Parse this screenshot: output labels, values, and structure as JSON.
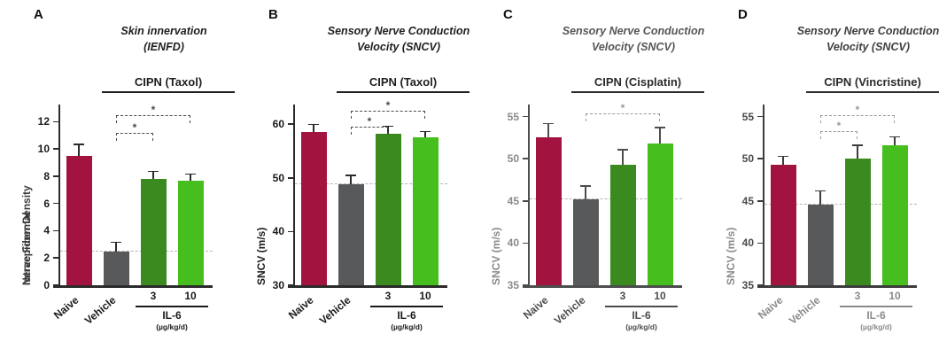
{
  "figure": {
    "background": "#ffffff",
    "colors": {
      "naive": "#a3133f",
      "vehicle": "#58595b",
      "il6_3": "#3b8a1f",
      "il6_10": "#46bf1e",
      "dashed_line": "#b5b5b5"
    }
  },
  "chart_data": [
    {
      "type": "bar",
      "letter": "A",
      "title": [
        "Skin innervation",
        "(IENFD)"
      ],
      "group_header": "CIPN (Taxol)",
      "ylabel": [
        "Intraepidermal",
        "Nerve Fiber Density"
      ],
      "categories": [
        "Naive",
        "Vehicle",
        "3",
        "10"
      ],
      "values": [
        9.5,
        2.5,
        7.8,
        7.7
      ],
      "errors": [
        0.8,
        0.6,
        0.5,
        0.4
      ],
      "bar_colors": [
        "naive",
        "vehicle",
        "il6_3",
        "il6_10"
      ],
      "ylim": [
        0,
        13
      ],
      "yticks": [
        0,
        2,
        4,
        6,
        8,
        10,
        12
      ],
      "reference_line": 2.5,
      "brackets": [
        {
          "from": 1,
          "to": 3,
          "label": "*",
          "top": 8
        },
        {
          "from": 1,
          "to": 2,
          "label": "*",
          "top": 28
        }
      ],
      "xgroup": {
        "label": "IL-6",
        "sublabel": "(µg/kg/d)"
      },
      "axis_color": "#2b2b2b",
      "axis_text_color": "#1a1a1a",
      "xtext_color": "#1a1a1a",
      "bracket_color": "#4a4a4a",
      "ylabel_color": "#3a3a3a",
      "title_color": "#1f1f1f",
      "header_color": "#1f1f1f"
    },
    {
      "type": "bar",
      "letter": "B",
      "title": [
        "Sensory Nerve Conduction",
        "Velocity (SNCV)"
      ],
      "group_header": "CIPN (Taxol)",
      "ylabel": [
        "SNCV (m/s)"
      ],
      "categories": [
        "Naive",
        "Vehicle",
        "3",
        "10"
      ],
      "values": [
        58.5,
        48.8,
        58.3,
        57.5
      ],
      "errors": [
        1.3,
        1.5,
        1.2,
        1.0
      ],
      "bar_colors": [
        "naive",
        "vehicle",
        "il6_3",
        "il6_10"
      ],
      "ylim": [
        30,
        63
      ],
      "yticks": [
        30,
        40,
        50,
        60
      ],
      "reference_line": 48.8,
      "brackets": [
        {
          "from": 1,
          "to": 3,
          "label": "*",
          "top": 3
        },
        {
          "from": 1,
          "to": 2,
          "label": "*",
          "top": 21
        }
      ],
      "xgroup": {
        "label": "IL-6",
        "sublabel": "(µg/kg/d)"
      },
      "axis_color": "#2b2b2b",
      "axis_text_color": "#1a1a1a",
      "xtext_color": "#1a1a1a",
      "bracket_color": "#4a4a4a",
      "ylabel_color": "#1a1a1a",
      "title_color": "#1f1f1f",
      "header_color": "#1f1f1f"
    },
    {
      "type": "bar",
      "letter": "C",
      "title": [
        "Sensory Nerve Conduction",
        "Velocity (SNCV)"
      ],
      "group_header": "CIPN (Cisplatin)",
      "ylabel": [
        "SNCV (m/s)"
      ],
      "categories": [
        "Naive",
        "Vehicle",
        "3",
        "10"
      ],
      "values": [
        52.5,
        45.2,
        49.3,
        51.8
      ],
      "errors": [
        1.6,
        1.5,
        1.7,
        1.8
      ],
      "bar_colors": [
        "naive",
        "vehicle",
        "il6_3",
        "il6_10"
      ],
      "ylim": [
        35,
        56
      ],
      "yticks": [
        35,
        40,
        45,
        50,
        55
      ],
      "reference_line": 45.2,
      "brackets": [
        {
          "from": 1,
          "to": 3,
          "label": "*",
          "top": 6
        }
      ],
      "xgroup": {
        "label": "IL-6",
        "sublabel": "(µg/kg/d)"
      },
      "axis_color": "#4d4d4d",
      "axis_text_color": "#8a8a8a",
      "xtext_color": "#4d4d4d",
      "bracket_color": "#9a9a9a",
      "ylabel_color": "#8a8a8a",
      "title_color": "#565656",
      "header_color": "#2b2b2b"
    },
    {
      "type": "bar",
      "letter": "D",
      "title": [
        "Sensory Nerve Conduction",
        "Velocity (SNCV)"
      ],
      "group_header": "CIPN (Vincristine)",
      "ylabel": [
        "SNCV (m/s)"
      ],
      "categories": [
        "Naive",
        "Vehicle",
        "3",
        "10"
      ],
      "values": [
        49.3,
        44.6,
        50.0,
        51.6
      ],
      "errors": [
        0.9,
        1.5,
        1.5,
        0.9
      ],
      "bar_colors": [
        "naive",
        "vehicle",
        "il6_3",
        "il6_10"
      ],
      "ylim": [
        35,
        56
      ],
      "yticks": [
        35,
        40,
        45,
        50,
        55
      ],
      "reference_line": 44.6,
      "brackets": [
        {
          "from": 1,
          "to": 3,
          "label": "*",
          "top": 8
        },
        {
          "from": 1,
          "to": 2,
          "label": "*",
          "top": 26
        }
      ],
      "xgroup": {
        "label": "IL-6",
        "sublabel": "(µg/kg/d)"
      },
      "axis_color": "#3c3c3c",
      "axis_text_color": "#4a4a4a",
      "xtext_color": "#8a8a8a",
      "bracket_color": "#9a9a9a",
      "ylabel_color": "#8a8a8a",
      "title_color": "#3f3f3f",
      "header_color": "#2b2b2b"
    }
  ]
}
